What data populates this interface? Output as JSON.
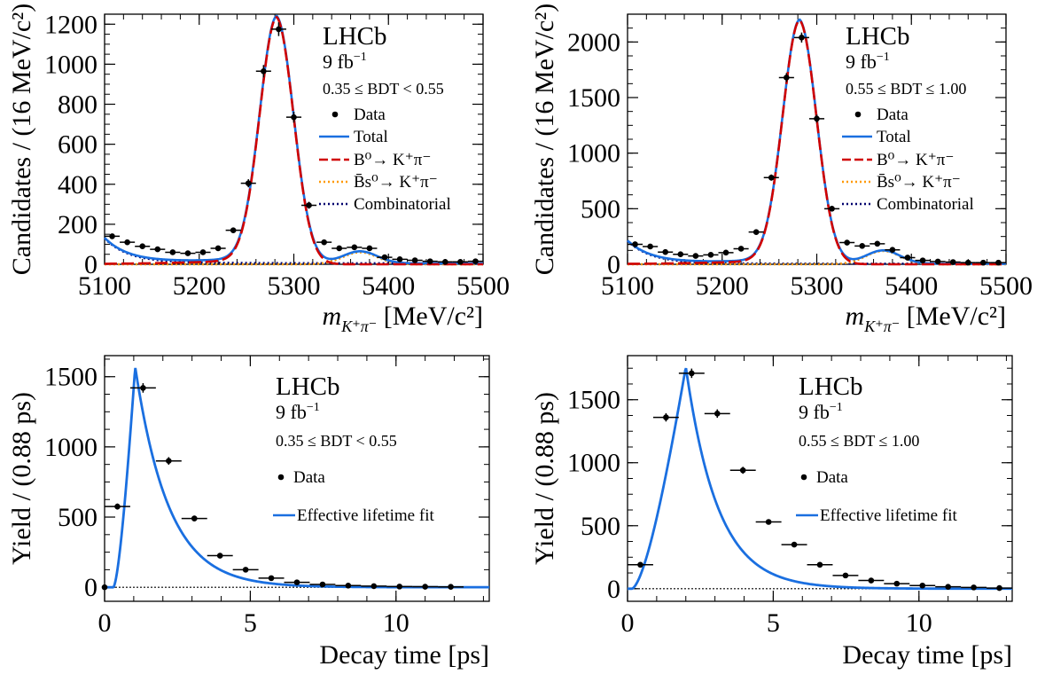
{
  "chart_data": [
    {
      "type": "scatter",
      "xlim": [
        5100,
        5500
      ],
      "ylim": [
        0,
        1250
      ],
      "x_ticks": [
        "5100",
        "5200",
        "5300",
        "5400",
        "5500"
      ],
      "y_ticks": [
        "0",
        "200",
        "400",
        "600",
        "800",
        "1000",
        "1200"
      ],
      "xlabel": "m",
      "xlabel_sub": "K⁺π⁻",
      "xlabel_unit": "[MeV/c²]",
      "ylabel": "Candidates / (16 MeV/c²)",
      "text": {
        "experiment": "LHCb",
        "lumi": "9 fb",
        "lumi_sup": "−1",
        "selection": "0.35 ≤ BDT < 0.55"
      },
      "legend": {
        "position": "top-right",
        "entries": [
          {
            "key": "data",
            "label": "Data"
          },
          {
            "key": "total",
            "label": "Total"
          },
          {
            "key": "b0",
            "label": "B⁰→ K⁺π⁻"
          },
          {
            "key": "bs",
            "label": "B̄s⁰→ K⁺π⁻"
          },
          {
            "key": "comb",
            "label": "Combinatorial"
          }
        ]
      },
      "data": {
        "x": [
          5108,
          5124,
          5140,
          5156,
          5172,
          5188,
          5204,
          5220,
          5236,
          5252,
          5268,
          5284,
          5300,
          5316,
          5332,
          5348,
          5364,
          5380,
          5396,
          5412,
          5428,
          5444,
          5460,
          5476,
          5492
        ],
        "y": [
          140,
          110,
          90,
          75,
          60,
          55,
          60,
          80,
          170,
          405,
          965,
          1175,
          735,
          295,
          110,
          80,
          85,
          80,
          35,
          25,
          20,
          15,
          12,
          12,
          15
        ]
      },
      "model": {
        "signal": {
          "amp": 1200,
          "mean": 5282,
          "sigma": 18
        },
        "bs": {
          "amp": 60,
          "mean": 5370,
          "sigma": 18
        },
        "comb": {
          "amp": 120,
          "slope": 25
        },
        "sig_tail": {
          "amp": 35,
          "slope": 70
        }
      },
      "colors": {
        "total": "#1a6fe0",
        "b0": "#d00000",
        "bs": "#ff9900",
        "comb": "#00006e"
      }
    },
    {
      "type": "scatter",
      "xlim": [
        5100,
        5500
      ],
      "ylim": [
        0,
        2250
      ],
      "x_ticks": [
        "5100",
        "5200",
        "5300",
        "5400",
        "5500"
      ],
      "y_ticks": [
        "0",
        "500",
        "1000",
        "1500",
        "2000"
      ],
      "xlabel": "m",
      "xlabel_sub": "K⁺π⁻",
      "xlabel_unit": "[MeV/c²]",
      "ylabel": "Candidates / (16 MeV/c²)",
      "text": {
        "experiment": "LHCb",
        "lumi": "9 fb",
        "lumi_sup": "−1",
        "selection": "0.55 ≤ BDT ≤ 1.00"
      },
      "legend": {
        "position": "top-right",
        "entries": [
          {
            "key": "data",
            "label": "Data"
          },
          {
            "key": "total",
            "label": "Total"
          },
          {
            "key": "b0",
            "label": "B⁰→ K⁺π⁻"
          },
          {
            "key": "bs",
            "label": "B̄s⁰→ K⁺π⁻"
          },
          {
            "key": "comb",
            "label": "Combinatorial"
          }
        ]
      },
      "data": {
        "x": [
          5108,
          5124,
          5140,
          5156,
          5172,
          5188,
          5204,
          5220,
          5236,
          5252,
          5268,
          5284,
          5300,
          5316,
          5332,
          5348,
          5364,
          5380,
          5396,
          5412,
          5428,
          5444,
          5460,
          5476,
          5492
        ],
        "y": [
          180,
          160,
          110,
          90,
          75,
          85,
          105,
          140,
          290,
          780,
          1680,
          2040,
          1310,
          500,
          195,
          165,
          185,
          130,
          60,
          35,
          25,
          20,
          15,
          15,
          15
        ]
      },
      "model": {
        "signal": {
          "amp": 2140,
          "mean": 5282,
          "sigma": 18
        },
        "bs": {
          "amp": 120,
          "mean": 5370,
          "sigma": 18
        },
        "comb": {
          "amp": 200,
          "slope": 25
        },
        "sig_tail": {
          "amp": 55,
          "slope": 70
        }
      },
      "colors": {
        "total": "#1a6fe0",
        "b0": "#d00000",
        "bs": "#ff9900",
        "comb": "#00006e"
      }
    },
    {
      "type": "scatter",
      "xlim": [
        0,
        13.2
      ],
      "ylim": [
        -100,
        1650
      ],
      "x_ticks": [
        "0",
        "5",
        "10"
      ],
      "y_ticks": [
        "0",
        "500",
        "1000",
        "1500"
      ],
      "xlabel": "Decay time [ps]",
      "ylabel": "Yield / (0.88 ps)",
      "text": {
        "experiment": "LHCb",
        "lumi": "9 fb",
        "lumi_sup": "−1",
        "selection": "0.35 ≤ BDT < 0.55"
      },
      "legend": {
        "position": "top-right",
        "entries": [
          {
            "key": "data",
            "label": "Data"
          },
          {
            "key": "fit",
            "label": "Effective lifetime fit"
          }
        ]
      },
      "data": {
        "x": [
          0,
          0.44,
          1.32,
          2.2,
          3.08,
          3.96,
          4.84,
          5.72,
          6.6,
          7.48,
          8.36,
          9.24,
          10.12,
          11.0,
          11.88
        ],
        "y": [
          0,
          575,
          1420,
          900,
          490,
          225,
          125,
          65,
          35,
          20,
          12,
          8,
          5,
          4,
          3
        ]
      },
      "data_xerr": [
        0,
        0.44,
        0.44,
        0.44,
        0.44,
        0.44,
        0.44,
        0.44,
        0.44,
        0.44,
        0.44,
        0.44,
        0.44,
        0.44,
        0.44
      ],
      "fit": {
        "t0": 0.3,
        "peak_t": 1.05,
        "peak_y": 1570,
        "tau": 1.15
      },
      "colors": {
        "fit": "#1a6fe0"
      }
    },
    {
      "type": "scatter",
      "xlim": [
        0,
        13.2
      ],
      "ylim": [
        -100,
        1850
      ],
      "x_ticks": [
        "0",
        "5",
        "10"
      ],
      "y_ticks": [
        "0",
        "500",
        "1000",
        "1500"
      ],
      "xlabel": "Decay time [ps]",
      "ylabel": "Yield / (0.88 ps)",
      "text": {
        "experiment": "LHCb",
        "lumi": "9 fb",
        "lumi_sup": "−1",
        "selection": "0.55 ≤ BDT ≤ 1.00"
      },
      "legend": {
        "position": "top-right",
        "entries": [
          {
            "key": "data",
            "label": "Data"
          },
          {
            "key": "fit",
            "label": "Effective lifetime fit"
          }
        ]
      },
      "data": {
        "x": [
          0.44,
          1.32,
          2.2,
          3.08,
          3.96,
          4.84,
          5.72,
          6.6,
          7.48,
          8.36,
          9.24,
          10.12,
          11.0,
          11.88,
          12.76
        ],
        "y": [
          190,
          1360,
          1710,
          1390,
          940,
          530,
          350,
          190,
          105,
          65,
          40,
          25,
          15,
          10,
          5
        ]
      },
      "data_xerr": [
        0.44,
        0.44,
        0.44,
        0.44,
        0.44,
        0.44,
        0.44,
        0.44,
        0.44,
        0.44,
        0.44,
        0.44,
        0.44,
        0.44,
        0.44
      ],
      "fit": {
        "t0": 0.15,
        "peak_t": 2.0,
        "peak_y": 1760,
        "tau": 1.1
      },
      "colors": {
        "fit": "#1a6fe0"
      }
    }
  ]
}
